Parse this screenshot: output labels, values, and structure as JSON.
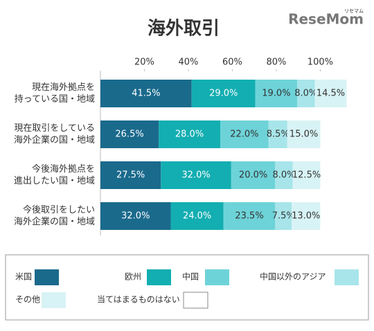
{
  "chart_data": {
    "type": "stacked-bar-horizontal",
    "title": "海外取引",
    "logo": "ReseMom",
    "logo_sub": "リセマム",
    "categories": [
      [
        "現在海外拠点を",
        "持っている国・地域"
      ],
      [
        "現在取引をしている",
        "海外企業の国・地域"
      ],
      [
        "今後海外拠点を",
        "進出したい国・地域"
      ],
      [
        "今後取引をしたい",
        "海外企業の国・地域"
      ]
    ],
    "series": [
      {
        "name": "米国",
        "color": "#1a6a8c",
        "values": [
          41.5,
          26.5,
          27.5,
          32.0
        ],
        "value_labels": [
          "41.5%",
          "26.5%",
          "27.5%",
          "32.0%"
        ]
      },
      {
        "name": "欧州",
        "color": "#13aeb1",
        "values": [
          29.0,
          28.0,
          32.0,
          24.0
        ],
        "value_labels": [
          "29.0%",
          "28.0%",
          "32.0%",
          "24.0%"
        ]
      },
      {
        "name": "中国",
        "color": "#6dd3d8",
        "values": [
          19.0,
          22.0,
          20.0,
          23.5
        ],
        "value_labels": [
          "19.0%",
          "22.0%",
          "20.0%",
          "23.5%"
        ]
      },
      {
        "name": "中国以外のアジア",
        "color": "#a7e5ea",
        "values": [
          8.0,
          8.5,
          8.0,
          7.5
        ],
        "value_labels": [
          "8.0%",
          "8.5%",
          "8.0%",
          "7.5%"
        ]
      },
      {
        "name": "その他",
        "color": "#d8f3f5",
        "values": [
          14.5,
          15.0,
          12.5,
          13.0
        ],
        "value_labels": [
          "14.5%",
          "15.0%",
          "12.5%",
          "13.0%"
        ]
      }
    ],
    "legend_extra": [
      {
        "name": "当てはまるものはない",
        "color": "#ffffff"
      }
    ],
    "xlim": [
      0,
      115
    ],
    "xticks": [
      {
        "value": 20,
        "label": "20%"
      },
      {
        "value": 40,
        "label": "40%"
      },
      {
        "value": 60,
        "label": "60%"
      },
      {
        "value": 80,
        "label": "80%"
      },
      {
        "value": 100,
        "label": "100%"
      }
    ]
  }
}
